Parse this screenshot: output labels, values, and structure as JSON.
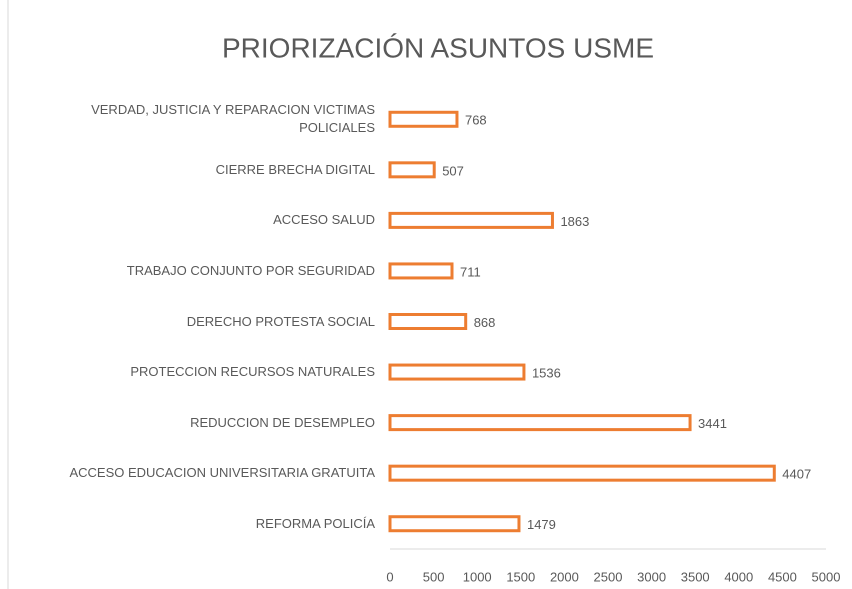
{
  "chart_data": {
    "type": "bar",
    "orientation": "horizontal",
    "title": "PRIORIZACIÓN ASUNTOS USME",
    "categories": [
      "VERDAD, JUSTICIA Y REPARACION VICTIMAS POLICIALES",
      "CIERRE BRECHA DIGITAL",
      "ACCESO SALUD",
      "TRABAJO CONJUNTO POR SEGURIDAD",
      "DERECHO PROTESTA SOCIAL",
      "PROTECCION RECURSOS NATURALES",
      "REDUCCION DE DESEMPLEO",
      "ACCESO EDUCACION UNIVERSITARIA GRATUITA",
      "REFORMA POLICÍA"
    ],
    "values": [
      768,
      507,
      1863,
      711,
      868,
      1536,
      3441,
      4407,
      1479
    ],
    "color": "#ed7d31",
    "xlim": [
      0,
      5000
    ],
    "xticks": [
      0,
      500,
      1000,
      1500,
      2000,
      2500,
      3000,
      3500,
      4000,
      4500,
      5000
    ],
    "grid": false
  }
}
